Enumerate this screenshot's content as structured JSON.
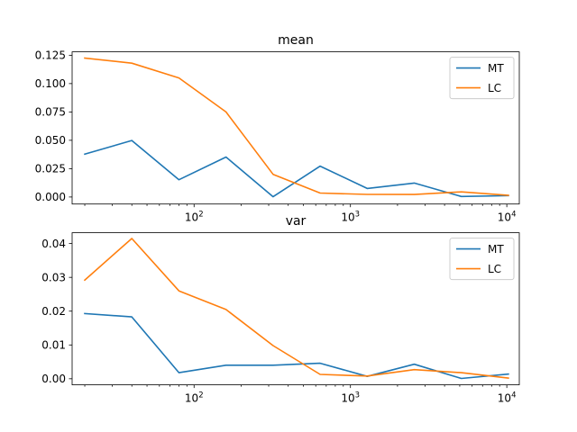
{
  "chart_data": [
    {
      "type": "line",
      "title": "mean",
      "xlabel": "",
      "ylabel": "",
      "x_scale": "log",
      "xlim": [
        16.6,
        12020
      ],
      "ylim": [
        -0.0062,
        0.128
      ],
      "x_ticks": [
        {
          "value": 100,
          "base": "10",
          "exp": "2"
        },
        {
          "value": 1000,
          "base": "10",
          "exp": "3"
        },
        {
          "value": 10000,
          "base": "10",
          "exp": "4"
        }
      ],
      "y_ticks": [
        {
          "value": 0.0,
          "label": "0.000"
        },
        {
          "value": 0.025,
          "label": "0.025"
        },
        {
          "value": 0.05,
          "label": "0.050"
        },
        {
          "value": 0.075,
          "label": "0.075"
        },
        {
          "value": 0.1,
          "label": "0.100"
        },
        {
          "value": 0.125,
          "label": "0.125"
        }
      ],
      "x": [
        20,
        40,
        80,
        160,
        320,
        640,
        1280,
        2560,
        5120,
        10240
      ],
      "series": [
        {
          "name": "MT",
          "color": "#1f77b4",
          "values": [
            0.0378,
            0.0498,
            0.0152,
            0.0352,
            0.0002,
            0.0272,
            0.0075,
            0.0123,
            0.0005,
            0.0012
          ]
        },
        {
          "name": "LC",
          "color": "#ff7f0e",
          "values": [
            0.1225,
            0.118,
            0.105,
            0.075,
            0.02,
            0.0035,
            0.0023,
            0.0022,
            0.0045,
            0.0015
          ]
        }
      ],
      "grid": false,
      "legend": "top-right"
    },
    {
      "type": "line",
      "title": "var",
      "xlabel": "",
      "ylabel": "",
      "x_scale": "log",
      "xlim": [
        16.6,
        12020
      ],
      "ylim": [
        -0.0018,
        0.0432
      ],
      "x_ticks": [
        {
          "value": 100,
          "base": "10",
          "exp": "2"
        },
        {
          "value": 1000,
          "base": "10",
          "exp": "3"
        },
        {
          "value": 10000,
          "base": "10",
          "exp": "4"
        }
      ],
      "y_ticks": [
        {
          "value": 0.0,
          "label": "0.00"
        },
        {
          "value": 0.01,
          "label": "0.01"
        },
        {
          "value": 0.02,
          "label": "0.02"
        },
        {
          "value": 0.03,
          "label": "0.03"
        },
        {
          "value": 0.04,
          "label": "0.04"
        }
      ],
      "x": [
        20,
        40,
        80,
        160,
        320,
        640,
        1280,
        2560,
        5120,
        10240
      ],
      "series": [
        {
          "name": "MT",
          "color": "#1f77b4",
          "values": [
            0.0193,
            0.0183,
            0.0018,
            0.004,
            0.004,
            0.0046,
            0.0007,
            0.0043,
            0.0001,
            0.0014
          ]
        },
        {
          "name": "LC",
          "color": "#ff7f0e",
          "values": [
            0.0292,
            0.0415,
            0.026,
            0.0205,
            0.0098,
            0.0013,
            0.0008,
            0.0027,
            0.0018,
            0.0002
          ]
        }
      ],
      "grid": false,
      "legend": "top-right"
    }
  ]
}
